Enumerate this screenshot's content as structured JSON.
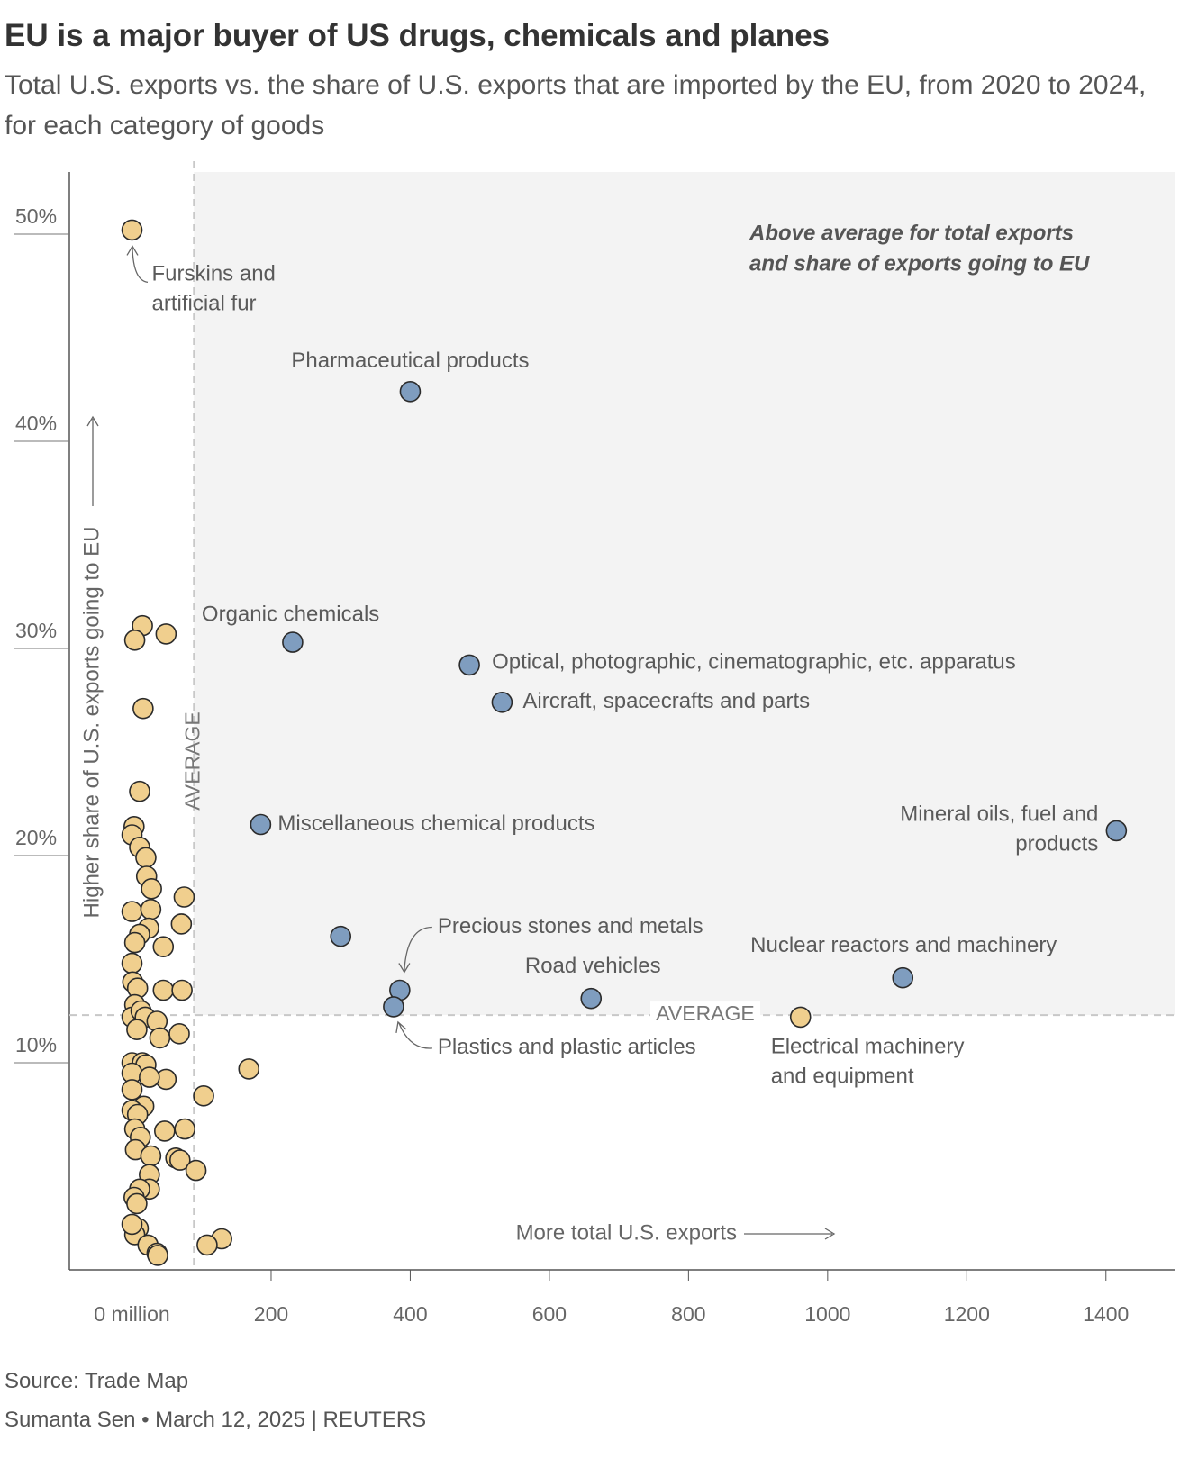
{
  "chart_data": {
    "type": "scatter",
    "title": "EU is a major buyer of US drugs, chemicals and planes",
    "subtitle": "Total U.S. exports vs. the share of U.S. exports that are imported by the EU, from 2020 to 2024, for each category of goods",
    "x_label": "More total U.S. exports",
    "y_label": "Higher share of U.S. exports going to EU",
    "highlight_label": [
      "Above average for total exports",
      "and share of exports going to EU"
    ],
    "x_average": 89,
    "y_average": 12.3,
    "x_average_label": "AVERAGE",
    "y_average_label": "AVERAGE",
    "xlim": [
      -90,
      1500
    ],
    "ylim": [
      0,
      53
    ],
    "xticks": [
      {
        "value": 0,
        "label": "0 million"
      },
      200,
      400,
      600,
      800,
      1000,
      1200,
      1400
    ],
    "yticks": [
      {
        "value": 10,
        "label": "10%"
      },
      {
        "value": 20,
        "label": "20%"
      },
      {
        "value": 30,
        "label": "30%"
      },
      {
        "value": 40,
        "label": "40%"
      },
      {
        "value": 50,
        "label": "50%"
      }
    ],
    "series": [
      {
        "color": "#f0cf8e",
        "x": [
          0,
          961
        ],
        "values": [
          50.2,
          12.2
        ],
        "labels": [
          [
            "Furskins and",
            "artificial fur"
          ],
          [
            "Electrical machinery",
            "and equipment"
          ]
        ]
      },
      {
        "color": "#f0cf8e",
        "x": [
          15,
          4,
          49,
          16,
          11,
          3,
          0,
          11,
          20,
          21,
          28,
          75,
          0,
          27,
          71,
          24,
          11,
          45,
          4,
          0,
          1,
          8,
          45,
          72,
          4,
          0,
          13,
          19,
          36,
          7,
          68,
          40,
          0,
          15,
          20,
          0,
          49,
          25,
          168,
          0,
          103,
          17,
          0,
          8,
          4,
          76,
          47,
          12,
          5,
          27,
          63,
          69,
          92,
          25,
          25,
          11,
          3,
          7,
          9,
          4,
          23,
          129,
          108,
          36,
          37,
          0
        ],
        "values": [
          31.1,
          30.4,
          30.7,
          27.1,
          23.1,
          21.4,
          21.0,
          20.4,
          19.9,
          19.0,
          18.4,
          18.0,
          17.3,
          17.4,
          16.7,
          16.5,
          16.2,
          15.6,
          15.8,
          14.8,
          13.9,
          13.6,
          13.5,
          13.5,
          12.8,
          12.2,
          12.5,
          12.2,
          12.0,
          11.6,
          11.4,
          11.2,
          10.0,
          10.0,
          9.9,
          9.5,
          9.2,
          9.3,
          9.7,
          8.7,
          8.4,
          7.9,
          7.7,
          7.5,
          6.8,
          6.8,
          6.7,
          6.4,
          5.8,
          5.5,
          5.4,
          5.3,
          4.8,
          4.6,
          3.9,
          3.9,
          3.5,
          3.2,
          2.0,
          1.7,
          1.2,
          1.5,
          1.2,
          0.8,
          0.7,
          2.2
        ]
      },
      {
        "color": "#7f9dbf",
        "x": [
          400,
          231,
          485,
          532,
          185,
          1415,
          300,
          385,
          376,
          660,
          1108
        ],
        "values": [
          42.4,
          30.3,
          29.2,
          27.4,
          21.5,
          21.2,
          16.1,
          13.5,
          12.7,
          13.1,
          14.1
        ],
        "labels": [
          [
            "Pharmaceutical products"
          ],
          [
            "Organic chemicals"
          ],
          [
            "Optical, photographic, cinematographic, etc. apparatus"
          ],
          [
            "Aircraft, spacecrafts and parts"
          ],
          [
            "Miscellaneous chemical products"
          ],
          [
            "Mineral oils, fuel and",
            "products"
          ],
          null,
          [
            "Precious stones and metals"
          ],
          [
            "Plastics and plastic articles"
          ],
          [
            "Road vehicles"
          ],
          [
            "Nuclear reactors and machinery"
          ]
        ]
      }
    ],
    "source": "Source: Trade Map",
    "credit": "Sumanta Sen • March 12, 2025 | REUTERS"
  }
}
